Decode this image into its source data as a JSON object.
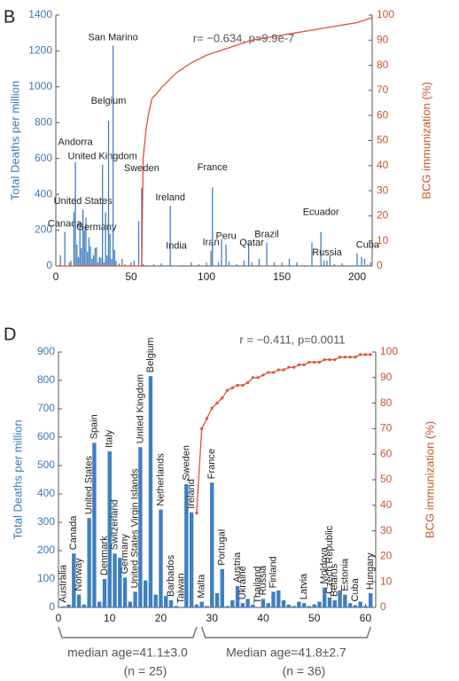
{
  "chart_data": [
    {
      "type": "bar",
      "panel_label": "B",
      "annotation": "r= −0.634, p=9.9e-7",
      "y_label": "Total Deaths per million",
      "y2_label": "BCG immunization (%)",
      "xlim": [
        0,
        210
      ],
      "xticks": [
        0,
        50,
        100,
        150,
        200
      ],
      "ylim": [
        0,
        1400
      ],
      "yticks": [
        0,
        200,
        400,
        600,
        800,
        1000,
        1200,
        1400
      ],
      "y2lim": [
        0,
        100
      ],
      "y2ticks": [
        0,
        10,
        20,
        30,
        40,
        50,
        60,
        70,
        80,
        90,
        100
      ],
      "series": [
        {
          "color": "#3f7fbf",
          "x": [
            3,
            6,
            9,
            10,
            12,
            13,
            14,
            15,
            16,
            17,
            18,
            19,
            20,
            21,
            22,
            23,
            24,
            25,
            26,
            27,
            28,
            29,
            30,
            31,
            32,
            33,
            34,
            35,
            36,
            37,
            38,
            39,
            40,
            42,
            44,
            46,
            50,
            52,
            55,
            57,
            58,
            60,
            65,
            70,
            76,
            80,
            85,
            90,
            95,
            100,
            103,
            104,
            108,
            110,
            113,
            115,
            120,
            125,
            128,
            130,
            135,
            140,
            145,
            150,
            155,
            160,
            165,
            170,
            176,
            178,
            180,
            182,
            185,
            190,
            195,
            200,
            203,
            205,
            207,
            209
          ],
          "values": [
            60,
            190,
            20,
            30,
            300,
            580,
            120,
            50,
            250,
            100,
            315,
            200,
            270,
            80,
            160,
            110,
            40,
            60,
            100,
            105,
            20,
            50,
            45,
            565,
            20,
            300,
            60,
            810,
            180,
            40,
            1230,
            90,
            30,
            15,
            40,
            10,
            20,
            30,
            250,
            435,
            10,
            5,
            10,
            15,
            335,
            1,
            5,
            20,
            10,
            15,
            85,
            440,
            20,
            150,
            120,
            25,
            10,
            30,
            130,
            20,
            40,
            130,
            20,
            10,
            40,
            20,
            5,
            130,
            190,
            30,
            30,
            60,
            10,
            15,
            5,
            70,
            50,
            40,
            8,
            20
          ],
          "labels": [
            null,
            "Canada",
            null,
            null,
            null,
            "Andorra",
            null,
            null,
            null,
            null,
            "United States",
            null,
            null,
            null,
            null,
            null,
            null,
            null,
            null,
            "Germany",
            null,
            null,
            null,
            "United Kingdom",
            null,
            null,
            null,
            "Belgium",
            null,
            null,
            "San Marino",
            null,
            null,
            null,
            null,
            null,
            null,
            null,
            null,
            "Sweden",
            null,
            null,
            null,
            null,
            "Ireland",
            "India",
            null,
            null,
            null,
            null,
            "Iran",
            "France",
            null,
            null,
            "Peru",
            null,
            null,
            null,
            null,
            "Qatar",
            null,
            "Brazil",
            null,
            null,
            null,
            null,
            null,
            null,
            "Ecuador",
            null,
            "Russia",
            null,
            null,
            null,
            null,
            null,
            null,
            null,
            "Cuba",
            null
          ]
        },
        {
          "type": "line",
          "axis": "y2",
          "color": "#e0503a",
          "x": [
            0,
            57,
            58,
            60,
            62,
            64,
            66,
            70,
            75,
            80,
            85,
            90,
            100,
            110,
            120,
            130,
            140,
            150,
            160,
            170,
            180,
            190,
            200,
            210
          ],
          "values": [
            0,
            0,
            43,
            55,
            62,
            67,
            68,
            71,
            74,
            77,
            79,
            81,
            84,
            86,
            88,
            90,
            91,
            92,
            93,
            94,
            95,
            96,
            97,
            99
          ]
        }
      ]
    },
    {
      "type": "bar",
      "panel_label": "D",
      "annotation": "r = −0.411, p=0.0011",
      "y_label": "Total Deaths per million",
      "y2_label": "BCG immunization (%)",
      "xlim": [
        0,
        62
      ],
      "xticks": [
        0,
        10,
        20,
        30,
        40,
        50,
        60
      ],
      "ylim": [
        0,
        900
      ],
      "yticks": [
        0,
        100,
        200,
        300,
        400,
        500,
        600,
        700,
        800,
        900
      ],
      "y2lim": [
        0,
        100
      ],
      "y2ticks": [
        0,
        10,
        20,
        30,
        40,
        50,
        60,
        70,
        80,
        90,
        100
      ],
      "groups": [
        {
          "text": "median age=41.1±3.0",
          "n": "(n = 25)"
        },
        {
          "text": "Median age=41.8±2.7",
          "n": "(n = 36)"
        }
      ],
      "series": [
        {
          "color": "#3f7fbf",
          "rotated_labels": true,
          "x": [
            1,
            2,
            3,
            4,
            5,
            6,
            7,
            8,
            9,
            10,
            11,
            12,
            13,
            14,
            15,
            16,
            17,
            18,
            19,
            20,
            21,
            22,
            23,
            24,
            25,
            26,
            27,
            28,
            29,
            30,
            31,
            32,
            33,
            34,
            35,
            36,
            37,
            38,
            39,
            40,
            41,
            42,
            43,
            44,
            45,
            46,
            47,
            48,
            49,
            50,
            51,
            52,
            53,
            54,
            55,
            56,
            57,
            58,
            59,
            60,
            61
          ],
          "values": [
            4,
            10,
            190,
            45,
            10,
            315,
            580,
            20,
            100,
            550,
            190,
            175,
            105,
            20,
            55,
            565,
            95,
            815,
            45,
            345,
            40,
            25,
            5,
            1,
            435,
            335,
            10,
            20,
            5,
            440,
            50,
            135,
            5,
            25,
            75,
            15,
            30,
            10,
            1,
            30,
            15,
            55,
            60,
            25,
            10,
            5,
            20,
            15,
            5,
            10,
            20,
            70,
            35,
            25,
            60,
            45,
            15,
            8,
            20,
            5,
            50
          ],
          "labels": [
            "Australia",
            null,
            "Canada",
            "Norway",
            null,
            "United States",
            "Spain",
            null,
            "Denmark",
            "Italy",
            "Switzerland",
            null,
            "Germany",
            null,
            "United States Virgin Islands",
            "United Kingdom",
            null,
            "Belgium",
            null,
            "Netherlands",
            null,
            "Barbados",
            null,
            "Taiwan",
            "Sweden",
            "Ireland",
            null,
            "Malta",
            null,
            "France",
            null,
            "Portugal",
            null,
            null,
            "Austria",
            "Ukraine",
            null,
            null,
            "Thailand",
            "Russia",
            null,
            "Finland",
            null,
            null,
            null,
            null,
            null,
            "Latvia",
            null,
            null,
            null,
            "Moldova",
            "Czech Republic",
            "Belarus",
            null,
            "Estonia",
            null,
            "Cuba",
            null,
            null,
            "Hungary"
          ]
        },
        {
          "type": "line",
          "axis": "y2",
          "color": "#e0503a",
          "markers": true,
          "x": [
            27,
            28,
            29,
            30,
            31,
            32,
            33,
            34,
            35,
            36,
            37,
            38,
            39,
            40,
            41,
            42,
            43,
            44,
            45,
            46,
            47,
            48,
            49,
            50,
            51,
            52,
            53,
            54,
            55,
            56,
            57,
            58,
            59,
            60,
            61
          ],
          "values": [
            37,
            70,
            74,
            78,
            80,
            82,
            85,
            86,
            87,
            87,
            88,
            90,
            90,
            91,
            92,
            92,
            93,
            93,
            94,
            94,
            95,
            95,
            96,
            96,
            96,
            97,
            97,
            97,
            98,
            98,
            98,
            98,
            99,
            99,
            99
          ]
        }
      ]
    }
  ]
}
